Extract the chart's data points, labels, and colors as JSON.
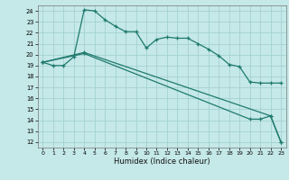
{
  "xlabel": "Humidex (Indice chaleur)",
  "bg_color": "#c5e8e8",
  "grid_color": "#9ecece",
  "line_color": "#1e7a6e",
  "xlim": [
    -0.5,
    23.5
  ],
  "ylim": [
    11.5,
    24.5
  ],
  "yticks": [
    12,
    13,
    14,
    15,
    16,
    17,
    18,
    19,
    20,
    21,
    22,
    23,
    24
  ],
  "xticks": [
    0,
    1,
    2,
    3,
    4,
    5,
    6,
    7,
    8,
    9,
    10,
    11,
    12,
    13,
    14,
    15,
    16,
    17,
    18,
    19,
    20,
    21,
    22,
    23
  ],
  "line1_x": [
    0,
    1,
    2,
    3,
    4,
    5,
    6,
    7,
    8,
    9,
    10,
    11,
    12,
    13,
    14,
    15,
    16,
    17,
    18,
    19,
    20,
    21,
    22,
    23
  ],
  "line1_y": [
    19.3,
    19.0,
    19.0,
    19.8,
    24.1,
    24.0,
    23.2,
    22.6,
    22.1,
    22.1,
    20.6,
    21.4,
    21.6,
    21.5,
    21.5,
    21.0,
    20.5,
    19.9,
    19.1,
    18.9,
    17.5,
    17.4,
    17.4,
    17.4
  ],
  "line2_x": [
    0,
    4,
    22,
    23
  ],
  "line2_y": [
    19.3,
    20.2,
    14.4,
    12.0
  ],
  "line3_x": [
    0,
    4,
    20,
    21,
    22,
    23
  ],
  "line3_y": [
    19.3,
    20.1,
    14.1,
    14.1,
    14.4,
    12.0
  ]
}
